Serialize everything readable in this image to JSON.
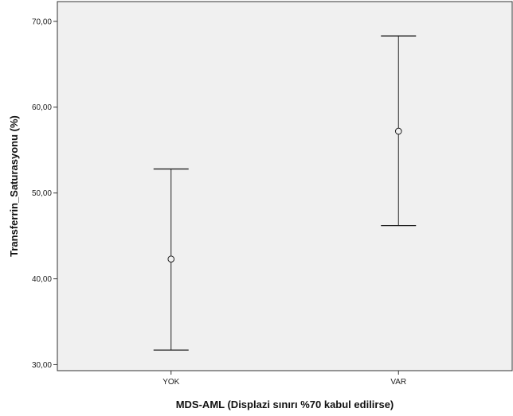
{
  "chart_data": {
    "type": "errorbar",
    "xlabel": "MDS-AML (Displazi sınırı %70 kabul edilirse)",
    "ylabel": "Transferrin_Saturasyonu (%)",
    "categories": [
      "YOK",
      "VAR"
    ],
    "points": [
      {
        "category": "YOK",
        "mean": 42.3,
        "lower": 31.7,
        "upper": 52.8
      },
      {
        "category": "VAR",
        "mean": 57.2,
        "lower": 46.2,
        "upper": 68.3
      }
    ],
    "yticks": [
      30,
      40,
      50,
      60,
      70
    ],
    "ytick_labels": [
      "30,00",
      "40,00",
      "50,00",
      "60,00",
      "70,00"
    ],
    "ylim": [
      29.3,
      72.3
    ],
    "grid": false,
    "colors": {
      "plot_background": "#f0f0f0",
      "marker": "#222222",
      "axis": "#333333"
    }
  }
}
